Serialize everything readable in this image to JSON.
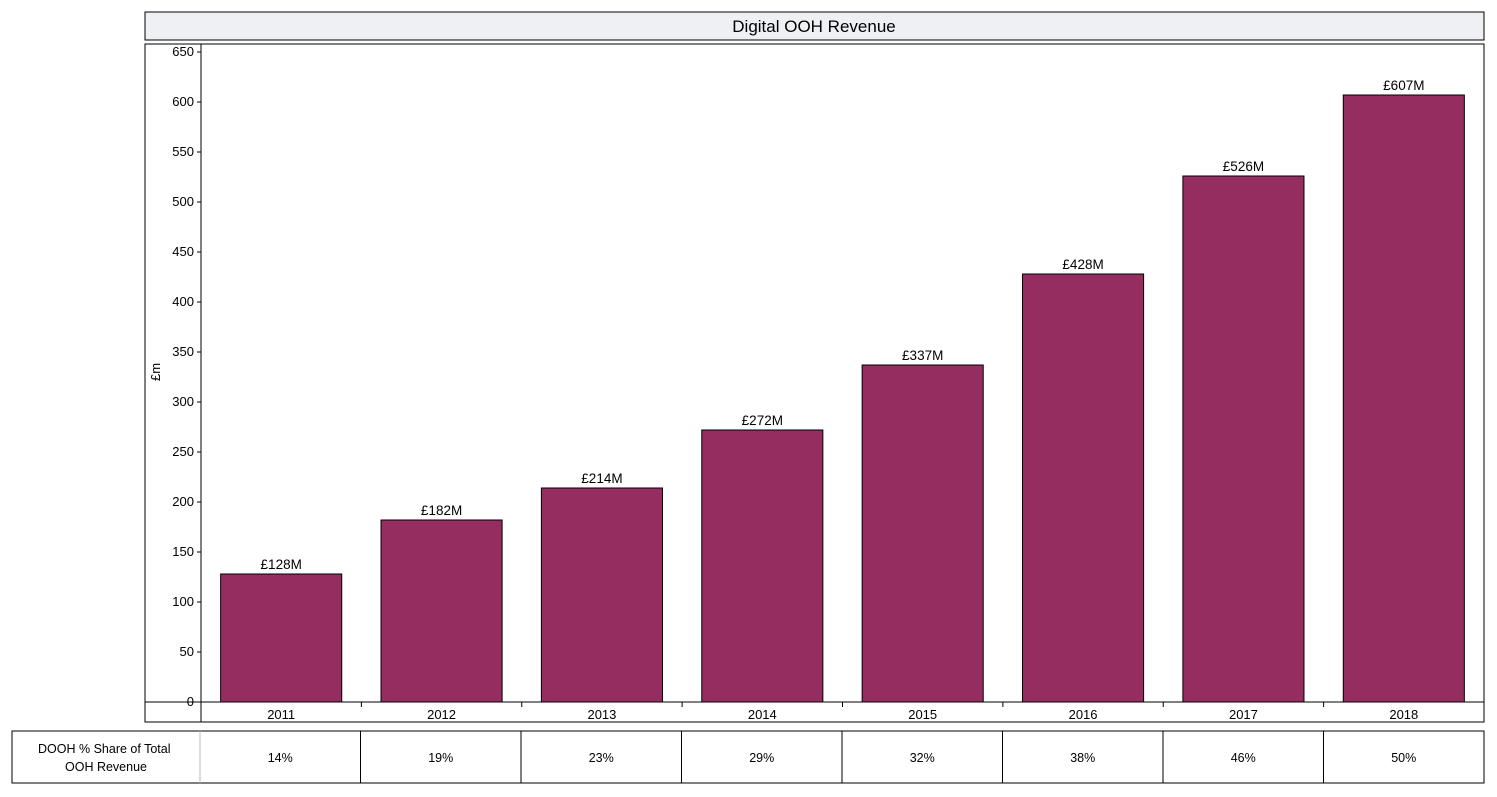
{
  "chart_data": {
    "type": "bar",
    "title": "Digital OOH Revenue",
    "ylabel": "£m",
    "xlabel": "",
    "ylim": [
      0,
      650
    ],
    "yticks": [
      0,
      50,
      100,
      150,
      200,
      250,
      300,
      350,
      400,
      450,
      500,
      550,
      600,
      650
    ],
    "categories": [
      "2011",
      "2012",
      "2013",
      "2014",
      "2015",
      "2016",
      "2017",
      "2018"
    ],
    "values": [
      128,
      182,
      214,
      272,
      337,
      428,
      526,
      607
    ],
    "data_labels": [
      "£128M",
      "£182M",
      "£214M",
      "£272M",
      "£337M",
      "£428M",
      "£526M",
      "£607M"
    ],
    "bar_color": "#962d60",
    "grid": false,
    "legend": "none"
  },
  "share_table": {
    "row_label": "DOOH % Share of Total OOH Revenue",
    "row_label_lines": [
      "DOOH % Share of Total",
      "OOH Revenue"
    ],
    "values": [
      "14%",
      "19%",
      "23%",
      "29%",
      "32%",
      "38%",
      "46%",
      "50%"
    ]
  }
}
